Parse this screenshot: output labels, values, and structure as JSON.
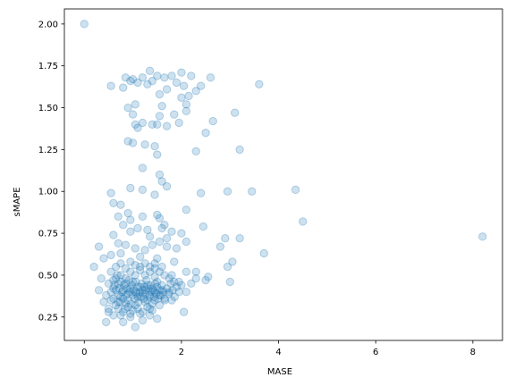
{
  "chart_data": {
    "type": "scatter",
    "title": "",
    "xlabel": "MASE",
    "ylabel": "sMAPE",
    "xlim": [
      -0.41,
      8.61
    ],
    "ylim": [
      0.11,
      2.09
    ],
    "xticks": [
      0,
      2,
      4,
      6,
      8
    ],
    "yticks": [
      0.25,
      0.5,
      0.75,
      1.0,
      1.25,
      1.5,
      1.75,
      2.0
    ],
    "ytick_labels": [
      "0.25",
      "0.50",
      "0.75",
      "1.00",
      "1.25",
      "1.50",
      "1.75",
      "2.00"
    ],
    "grid": false,
    "legend": "none",
    "marker_color": "#1f77b4",
    "marker_alpha": 0.22,
    "series": [
      {
        "points": [
          [
            0.0,
            2.0
          ],
          [
            0.85,
            1.68
          ],
          [
            1.0,
            1.67
          ],
          [
            1.2,
            1.68
          ],
          [
            1.35,
            1.72
          ],
          [
            1.5,
            1.69
          ],
          [
            1.65,
            1.68
          ],
          [
            1.8,
            1.69
          ],
          [
            2.0,
            1.71
          ],
          [
            2.2,
            1.69
          ],
          [
            2.6,
            1.68
          ],
          [
            0.55,
            1.63
          ],
          [
            0.8,
            1.62
          ],
          [
            1.3,
            1.64
          ],
          [
            1.7,
            1.61
          ],
          [
            2.05,
            1.63
          ],
          [
            2.4,
            1.63
          ],
          [
            3.6,
            1.64
          ],
          [
            1.55,
            1.58
          ],
          [
            2.0,
            1.56
          ],
          [
            2.15,
            1.57
          ],
          [
            2.3,
            1.6
          ],
          [
            0.95,
            1.66
          ],
          [
            1.1,
            1.65
          ],
          [
            1.4,
            1.66
          ],
          [
            1.9,
            1.65
          ],
          [
            0.9,
            1.5
          ],
          [
            1.05,
            1.52
          ],
          [
            1.6,
            1.51
          ],
          [
            2.1,
            1.52
          ],
          [
            3.1,
            1.47
          ],
          [
            1.0,
            1.46
          ],
          [
            1.55,
            1.45
          ],
          [
            1.85,
            1.46
          ],
          [
            2.1,
            1.48
          ],
          [
            2.65,
            1.42
          ],
          [
            1.05,
            1.4
          ],
          [
            1.2,
            1.41
          ],
          [
            1.4,
            1.4
          ],
          [
            1.7,
            1.39
          ],
          [
            1.95,
            1.41
          ],
          [
            1.1,
            1.38
          ],
          [
            1.5,
            1.4
          ],
          [
            2.5,
            1.35
          ],
          [
            0.9,
            1.3
          ],
          [
            1.0,
            1.29
          ],
          [
            1.25,
            1.28
          ],
          [
            1.45,
            1.27
          ],
          [
            1.5,
            1.22
          ],
          [
            2.3,
            1.24
          ],
          [
            3.2,
            1.25
          ],
          [
            1.2,
            1.14
          ],
          [
            1.55,
            1.1
          ],
          [
            1.6,
            1.06
          ],
          [
            0.95,
            1.02
          ],
          [
            1.2,
            1.01
          ],
          [
            1.45,
            0.98
          ],
          [
            1.7,
            1.03
          ],
          [
            2.1,
            0.89
          ],
          [
            2.4,
            0.99
          ],
          [
            2.95,
            1.0
          ],
          [
            3.45,
            1.0
          ],
          [
            4.35,
            1.01
          ],
          [
            4.5,
            0.82
          ],
          [
            0.55,
            0.99
          ],
          [
            0.6,
            0.93
          ],
          [
            0.75,
            0.92
          ],
          [
            0.9,
            0.87
          ],
          [
            1.5,
            0.86
          ],
          [
            1.55,
            0.84
          ],
          [
            1.2,
            0.85
          ],
          [
            0.7,
            0.85
          ],
          [
            0.8,
            0.8
          ],
          [
            0.95,
            0.83
          ],
          [
            1.65,
            0.8
          ],
          [
            2.45,
            0.79
          ],
          [
            0.95,
            0.76
          ],
          [
            1.1,
            0.78
          ],
          [
            1.3,
            0.77
          ],
          [
            1.6,
            0.78
          ],
          [
            1.8,
            0.76
          ],
          [
            2.0,
            0.75
          ],
          [
            0.6,
            0.74
          ],
          [
            1.35,
            0.73
          ],
          [
            1.7,
            0.72
          ],
          [
            2.1,
            0.7
          ],
          [
            2.9,
            0.72
          ],
          [
            3.2,
            0.72
          ],
          [
            3.7,
            0.63
          ],
          [
            8.2,
            0.73
          ],
          [
            0.3,
            0.67
          ],
          [
            0.7,
            0.69
          ],
          [
            0.85,
            0.68
          ],
          [
            1.05,
            0.66
          ],
          [
            1.25,
            0.65
          ],
          [
            1.4,
            0.68
          ],
          [
            1.55,
            0.7
          ],
          [
            1.7,
            0.67
          ],
          [
            1.9,
            0.66
          ],
          [
            2.8,
            0.67
          ],
          [
            2.95,
            0.55
          ],
          [
            3.05,
            0.58
          ],
          [
            3.0,
            0.46
          ],
          [
            2.55,
            0.49
          ],
          [
            0.2,
            0.55
          ],
          [
            0.4,
            0.6
          ],
          [
            0.55,
            0.62
          ],
          [
            0.75,
            0.63
          ],
          [
            1.15,
            0.61
          ],
          [
            1.5,
            0.6
          ],
          [
            1.85,
            0.58
          ],
          [
            2.3,
            0.52
          ],
          [
            2.5,
            0.47
          ],
          [
            0.35,
            0.48
          ],
          [
            0.3,
            0.41
          ],
          [
            0.4,
            0.34
          ],
          [
            0.5,
            0.3
          ],
          [
            0.45,
            0.22
          ],
          [
            0.6,
            0.26
          ],
          [
            0.8,
            0.22
          ],
          [
            0.95,
            0.25
          ],
          [
            1.2,
            0.23
          ],
          [
            1.35,
            0.26
          ],
          [
            1.5,
            0.24
          ],
          [
            1.05,
            0.19
          ],
          [
            2.05,
            0.28
          ],
          [
            1.8,
            0.35
          ],
          [
            2.1,
            0.4
          ],
          [
            2.2,
            0.45
          ],
          [
            2.3,
            0.48
          ],
          [
            2.1,
            0.52
          ],
          [
            1.95,
            0.46
          ],
          [
            1.8,
            0.5
          ],
          [
            1.6,
            0.55
          ],
          [
            1.45,
            0.54
          ],
          [
            0.6,
            0.47
          ],
          [
            0.55,
            0.4
          ],
          [
            0.6,
            0.36
          ],
          [
            0.62,
            0.44
          ],
          [
            0.65,
            0.32
          ],
          [
            0.68,
            0.5
          ],
          [
            0.7,
            0.38
          ],
          [
            0.72,
            0.42
          ],
          [
            0.74,
            0.34
          ],
          [
            0.76,
            0.46
          ],
          [
            0.78,
            0.4
          ],
          [
            0.8,
            0.36
          ],
          [
            0.82,
            0.44
          ],
          [
            0.84,
            0.3
          ],
          [
            0.86,
            0.38
          ],
          [
            0.88,
            0.42
          ],
          [
            0.9,
            0.35
          ],
          [
            0.92,
            0.47
          ],
          [
            0.94,
            0.4
          ],
          [
            0.96,
            0.33
          ],
          [
            0.98,
            0.44
          ],
          [
            1.0,
            0.38
          ],
          [
            1.02,
            0.41
          ],
          [
            1.04,
            0.36
          ],
          [
            1.06,
            0.46
          ],
          [
            1.08,
            0.39
          ],
          [
            1.1,
            0.43
          ],
          [
            1.12,
            0.34
          ],
          [
            1.14,
            0.4
          ],
          [
            1.16,
            0.37
          ],
          [
            1.18,
            0.45
          ],
          [
            1.2,
            0.41
          ],
          [
            1.22,
            0.36
          ],
          [
            1.24,
            0.43
          ],
          [
            1.26,
            0.39
          ],
          [
            1.28,
            0.47
          ],
          [
            1.3,
            0.35
          ],
          [
            1.32,
            0.42
          ],
          [
            1.34,
            0.38
          ],
          [
            1.36,
            0.44
          ],
          [
            1.38,
            0.4
          ],
          [
            1.4,
            0.33
          ],
          [
            1.42,
            0.41
          ],
          [
            1.44,
            0.37
          ],
          [
            1.46,
            0.45
          ],
          [
            1.48,
            0.39
          ],
          [
            1.5,
            0.43
          ],
          [
            1.52,
            0.36
          ],
          [
            1.55,
            0.41
          ],
          [
            1.58,
            0.38
          ],
          [
            1.6,
            0.44
          ],
          [
            1.63,
            0.4
          ],
          [
            1.66,
            0.35
          ],
          [
            1.7,
            0.42
          ],
          [
            1.74,
            0.39
          ],
          [
            1.78,
            0.45
          ],
          [
            1.82,
            0.41
          ],
          [
            1.86,
            0.37
          ],
          [
            1.9,
            0.43
          ],
          [
            1.95,
            0.4
          ],
          [
            2.0,
            0.44
          ],
          [
            0.65,
            0.41
          ],
          [
            0.7,
            0.45
          ],
          [
            0.75,
            0.37
          ],
          [
            0.8,
            0.41
          ],
          [
            0.85,
            0.45
          ],
          [
            0.9,
            0.39
          ],
          [
            0.95,
            0.42
          ],
          [
            1.0,
            0.46
          ],
          [
            1.05,
            0.4
          ],
          [
            1.1,
            0.37
          ],
          [
            1.15,
            0.43
          ],
          [
            1.2,
            0.39
          ],
          [
            1.25,
            0.41
          ],
          [
            1.3,
            0.44
          ],
          [
            1.35,
            0.37
          ],
          [
            1.4,
            0.42
          ],
          [
            1.45,
            0.4
          ],
          [
            1.5,
            0.46
          ],
          [
            1.55,
            0.38
          ],
          [
            1.6,
            0.41
          ],
          [
            0.75,
            0.5
          ],
          [
            0.85,
            0.48
          ],
          [
            0.95,
            0.52
          ],
          [
            1.05,
            0.5
          ],
          [
            1.15,
            0.53
          ],
          [
            1.25,
            0.5
          ],
          [
            1.35,
            0.52
          ],
          [
            1.45,
            0.49
          ],
          [
            0.7,
            0.3
          ],
          [
            0.8,
            0.28
          ],
          [
            0.9,
            0.31
          ],
          [
            1.0,
            0.29
          ],
          [
            1.1,
            0.3
          ],
          [
            1.2,
            0.28
          ],
          [
            1.3,
            0.31
          ],
          [
            1.4,
            0.29
          ],
          [
            0.55,
            0.52
          ],
          [
            0.65,
            0.55
          ],
          [
            0.75,
            0.57
          ],
          [
            0.85,
            0.54
          ],
          [
            0.95,
            0.58
          ],
          [
            1.05,
            0.56
          ],
          [
            1.15,
            0.55
          ],
          [
            1.25,
            0.57
          ],
          [
            1.35,
            0.55
          ],
          [
            1.45,
            0.57
          ],
          [
            1.55,
            0.52
          ],
          [
            1.65,
            0.5
          ],
          [
            1.75,
            0.48
          ],
          [
            1.85,
            0.46
          ],
          [
            0.5,
            0.45
          ],
          [
            0.55,
            0.35
          ],
          [
            0.45,
            0.38
          ],
          [
            0.5,
            0.28
          ],
          [
            0.6,
            0.42
          ],
          [
            0.65,
            0.48
          ],
          [
            0.7,
            0.34
          ],
          [
            0.75,
            0.26
          ],
          [
            0.85,
            0.33
          ],
          [
            0.95,
            0.27
          ],
          [
            1.05,
            0.32
          ],
          [
            1.15,
            0.27
          ],
          [
            1.25,
            0.34
          ],
          [
            1.35,
            0.3
          ],
          [
            1.45,
            0.35
          ],
          [
            1.55,
            0.32
          ],
          [
            1.65,
            0.36
          ],
          [
            1.75,
            0.4
          ]
        ]
      }
    ]
  }
}
